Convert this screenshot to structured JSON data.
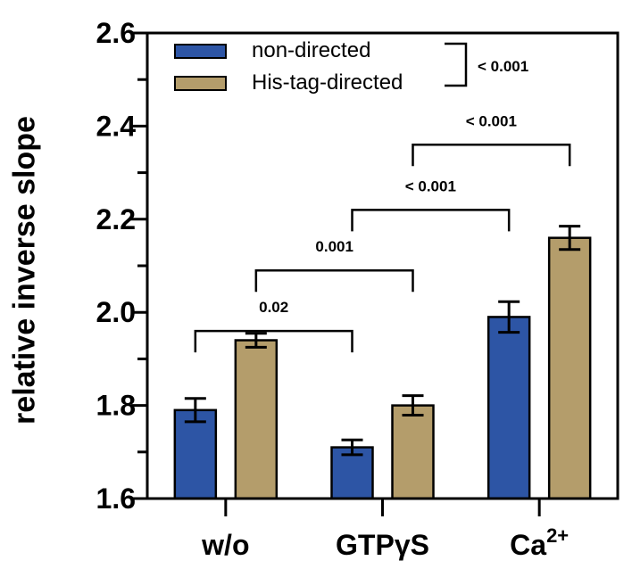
{
  "chart_data": {
    "type": "bar",
    "title": "",
    "ylabel": "relative inverse slope",
    "xlabel": "",
    "ylim": [
      1.6,
      2.6
    ],
    "yticks": [
      1.6,
      1.8,
      2.0,
      2.2,
      2.4,
      2.6
    ],
    "ytick_labels": [
      "1.6",
      "1.8",
      "2.0",
      "2.2",
      "2.4",
      "2.6"
    ],
    "minor_yticks": [
      1.7,
      1.9,
      2.1,
      2.3,
      2.5
    ],
    "grid": false,
    "categories": [
      {
        "text": "w/o",
        "sup": ""
      },
      {
        "text": "GTPγS",
        "sup": ""
      },
      {
        "text": "Ca",
        "sup": "2+"
      }
    ],
    "series": [
      {
        "name": "non-directed",
        "color": "#2d55a5",
        "values": [
          1.79,
          1.71,
          1.99
        ],
        "errors": [
          0.025,
          0.016,
          0.033
        ]
      },
      {
        "name": "His-tag-directed",
        "color": "#b49d6b",
        "values": [
          1.94,
          1.8,
          2.16
        ],
        "errors": [
          0.015,
          0.021,
          0.025
        ]
      }
    ],
    "significance_brackets": [
      {
        "label": "0.02",
        "series": 0,
        "from": 0,
        "to": 1,
        "y": 1.96
      },
      {
        "label": "0.001",
        "series": 1,
        "from": 0,
        "to": 1,
        "y": 2.09
      },
      {
        "label": "< 0.001",
        "series": 0,
        "from": 1,
        "to": 2,
        "y": 2.22
      },
      {
        "label": "< 0.001",
        "series": 1,
        "from": 1,
        "to": 2,
        "y": 2.36
      }
    ],
    "legend_position": "top-inside",
    "legend_significance_label": "< 0.001",
    "axis_color": "#000000",
    "background_color": "#ffffff"
  }
}
